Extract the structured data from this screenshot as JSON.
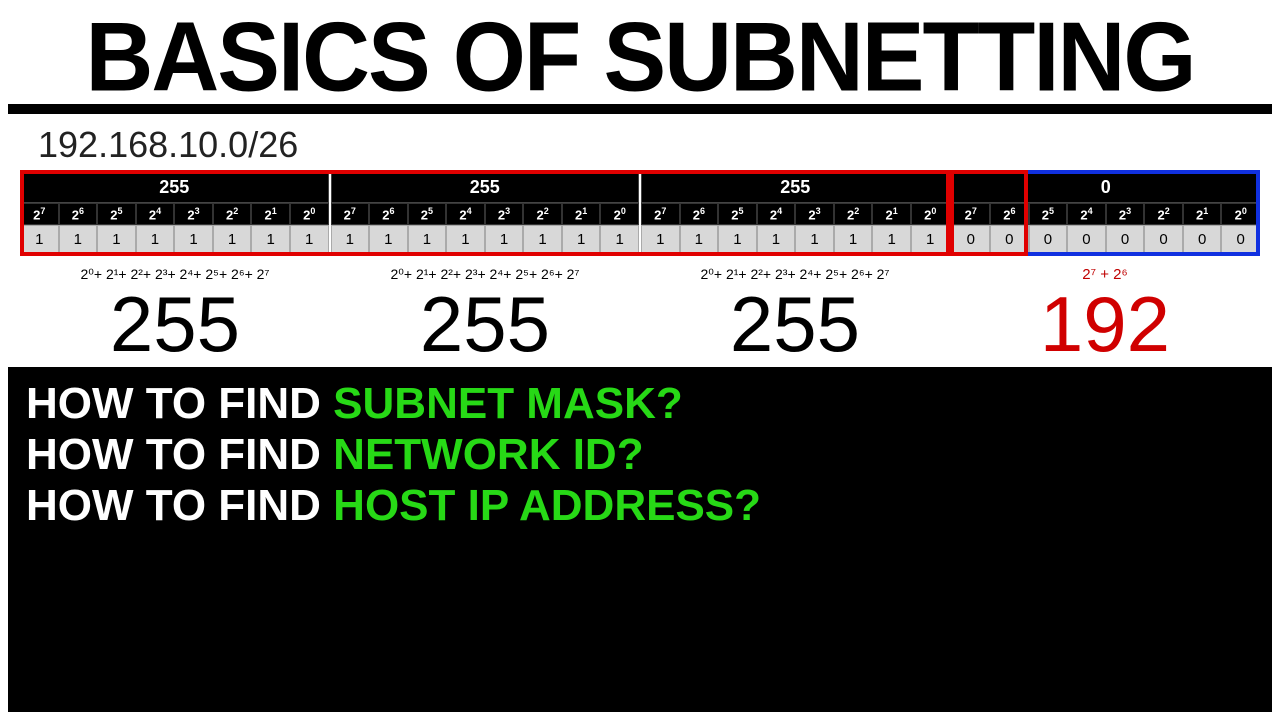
{
  "title": "BASICS OF SUBNETTING",
  "ip": "192.168.10.0/26",
  "octets": [
    {
      "header": "255",
      "bits": [
        "1",
        "1",
        "1",
        "1",
        "1",
        "1",
        "1",
        "1"
      ]
    },
    {
      "header": "255",
      "bits": [
        "1",
        "1",
        "1",
        "1",
        "1",
        "1",
        "1",
        "1"
      ]
    },
    {
      "header": "255",
      "bits": [
        "1",
        "1",
        "1",
        "1",
        "1",
        "1",
        "1",
        "1"
      ]
    },
    {
      "header": "0",
      "bits": [
        "0",
        "0",
        "0",
        "0",
        "0",
        "0",
        "0",
        "0"
      ]
    }
  ],
  "powers": [
    "7",
    "6",
    "5",
    "4",
    "3",
    "2",
    "1",
    "0"
  ],
  "calcs": [
    "2⁰+ 2¹+ 2²+ 2³+ 2⁴+ 2⁵+ 2⁶+ 2⁷",
    "2⁰+ 2¹+ 2²+ 2³+ 2⁴+ 2⁵+ 2⁶+ 2⁷",
    "2⁰+ 2¹+ 2²+ 2³+ 2⁴+ 2⁵+ 2⁶+ 2⁷",
    "2⁷ + 2⁶"
  ],
  "results": [
    "255",
    "255",
    "255",
    "192"
  ],
  "result_colors": [
    "#000",
    "#000",
    "#000",
    "#d00000"
  ],
  "overlays": {
    "red_big": {
      "left_pct": 0,
      "width_pct": 75
    },
    "red_small": {
      "left_pct": 75,
      "width_pct": 6.25
    },
    "blue": {
      "left_pct": 75,
      "width_pct": 25
    }
  },
  "footer": [
    {
      "prefix": "HOW TO FIND ",
      "highlight": "SUBNET MASK?"
    },
    {
      "prefix": "HOW TO FIND ",
      "highlight": "NETWORK ID?"
    },
    {
      "prefix": "HOW TO FIND ",
      "highlight": "HOST IP ADDRESS?"
    }
  ],
  "colors": {
    "green": "#27d916",
    "red_border": "#e00000",
    "blue_border": "#1030e0"
  }
}
